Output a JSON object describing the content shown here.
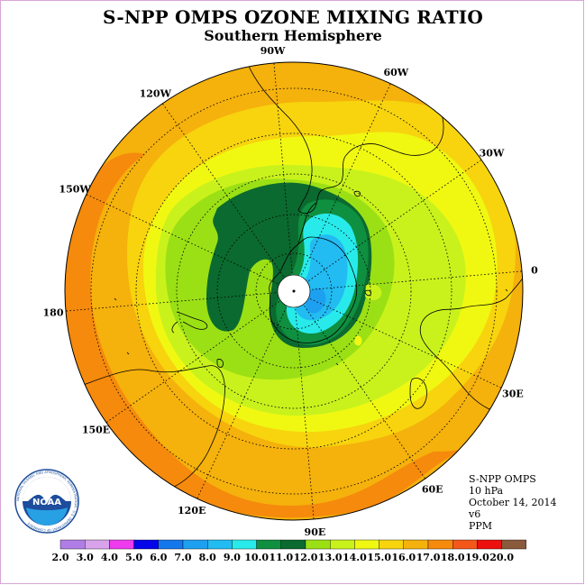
{
  "title": "S-NPP OMPS OZONE MIXING RATIO",
  "subtitle": "Southern Hemisphere",
  "longitudes": [
    "90W",
    "60W",
    "30W",
    "0",
    "30E",
    "60E",
    "90E",
    "120E",
    "150E",
    "180",
    "150W",
    "120W"
  ],
  "info": {
    "instrument": "S-NPP OMPS",
    "level": "10 hPa",
    "date": "October 14, 2014",
    "version": "v6",
    "units": "PPM"
  },
  "logo": {
    "text": "NOAA",
    "ring_text": "NATIONAL OCEANIC AND ATMOSPHERIC ADMINISTRATION · U.S. DEPARTMENT OF COMMERCE"
  },
  "colorbar": {
    "labels": [
      "2.0",
      "3.0",
      "4.0",
      "5.0",
      "6.0",
      "7.0",
      "8.0",
      "9.0",
      "10.0",
      "11.0",
      "12.0",
      "13.0",
      "14.0",
      "15.0",
      "16.0",
      "17.0",
      "18.0",
      "19.0",
      "20.0"
    ],
    "colors": [
      "#b07de6",
      "#d8a3ea",
      "#ee3bee",
      "#0505ea",
      "#1577ec",
      "#1ea0f0",
      "#22bbf2",
      "#28eaea",
      "#0f8f40",
      "#0b6a2f",
      "#9be014",
      "#c9f21c",
      "#f0f812",
      "#f7d40e",
      "#f5b10c",
      "#f58a0c",
      "#f4571a",
      "#ee0f0f",
      "#8a5a3c"
    ]
  }
}
